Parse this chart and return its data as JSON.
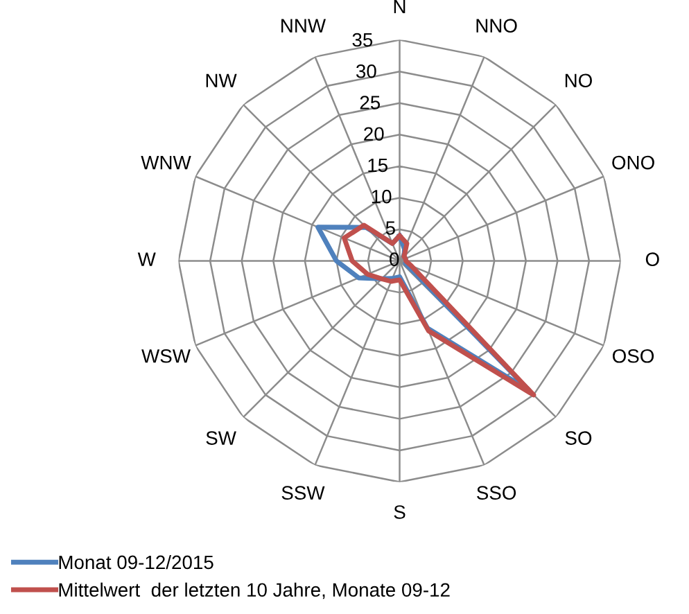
{
  "chart_data": {
    "type": "radar",
    "categories": [
      "N",
      "NNO",
      "NO",
      "ONO",
      "O",
      "OSO",
      "SO",
      "SSO",
      "S",
      "SSW",
      "SW",
      "WSW",
      "W",
      "WNW",
      "NW",
      "NNW"
    ],
    "series": [
      {
        "name": "Monat 09-12/2015",
        "color": "#4f81bd",
        "values": [
          4,
          2,
          1,
          1,
          1,
          1,
          29,
          11.5,
          2.5,
          3,
          4,
          7,
          10,
          14,
          7.5,
          3
        ]
      },
      {
        "name": "Mittelwert  der letzten 10 Jahre, Monate 09-12",
        "color": "#c0504d",
        "values": [
          4,
          3,
          1,
          1,
          1,
          2,
          30,
          12,
          3,
          3.5,
          4,
          5.5,
          7.5,
          9.5,
          8,
          3
        ]
      }
    ],
    "ylim": [
      0,
      35
    ],
    "yticks": [
      0,
      5,
      10,
      15,
      20,
      25,
      30,
      35
    ],
    "grid": true,
    "legend": "bottom left",
    "marker": "none"
  }
}
